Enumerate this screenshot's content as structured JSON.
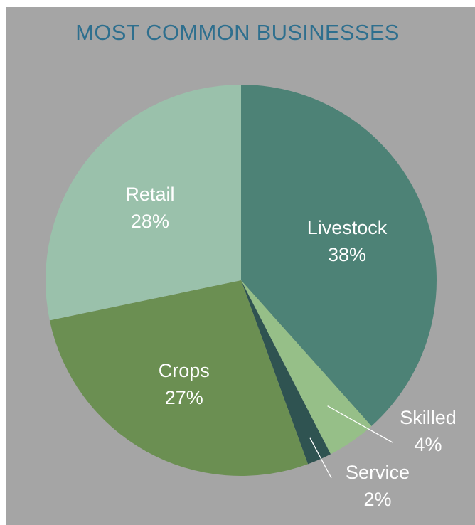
{
  "chart_data": {
    "type": "pie",
    "title": "MOST COMMON BUSINESSES",
    "slices": [
      {
        "name": "Livestock",
        "value": 38,
        "label": "38%",
        "color": "#4d8276"
      },
      {
        "name": "Skilled",
        "value": 4,
        "label": "4%",
        "color": "#96bf88"
      },
      {
        "name": "Service",
        "value": 2,
        "label": "2%",
        "color": "#2f5351"
      },
      {
        "name": "Crops",
        "value": 27,
        "label": "27%",
        "color": "#6b8f52"
      },
      {
        "name": "Retail",
        "value": 28,
        "label": "28%",
        "color": "#9ac1ab"
      }
    ],
    "start": "12 o'clock",
    "direction": "clockwise",
    "legend": "none"
  },
  "colors": {
    "background": "#a5a5a5",
    "title": "#2e6f8e",
    "label_text": "#ffffff"
  }
}
